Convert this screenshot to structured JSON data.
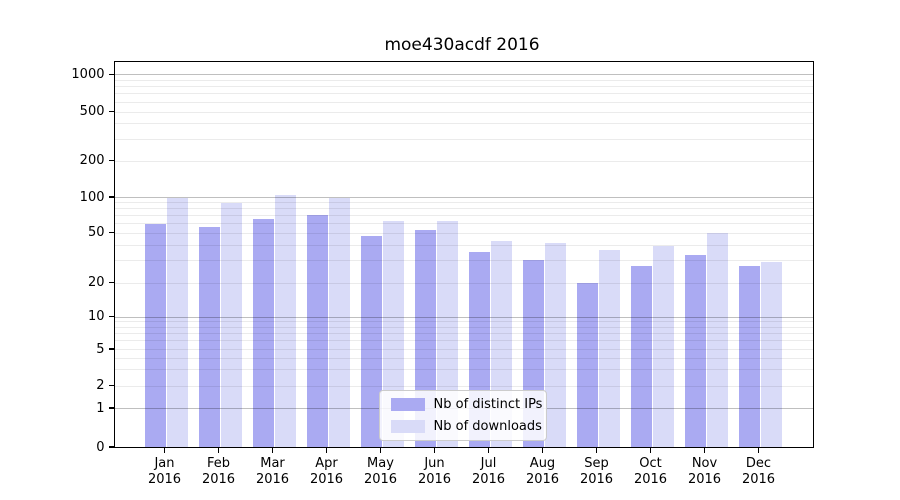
{
  "title": "moe430acdf 2016",
  "chart_data": {
    "type": "bar",
    "title": "moe430acdf 2016",
    "categories": [
      "Jan",
      "Feb",
      "Mar",
      "Apr",
      "May",
      "Jun",
      "Jul",
      "Aug",
      "Sep",
      "Oct",
      "Nov",
      "Dec"
    ],
    "year": "2016",
    "series": [
      {
        "name": "Nb of distinct IPs",
        "color": "#aaaaf2",
        "values": [
          59,
          56,
          65,
          70,
          47,
          53,
          35,
          30,
          20,
          27,
          33,
          27
        ]
      },
      {
        "name": "Nb of downloads",
        "color": "#d9dbf8",
        "values": [
          98,
          89,
          103,
          98,
          62,
          62,
          43,
          41,
          36,
          39,
          50,
          29
        ]
      }
    ],
    "y_ticks": [
      1000,
      500,
      200,
      100,
      50,
      20,
      10,
      5,
      2,
      1,
      0
    ],
    "ylim": [
      0,
      1200
    ],
    "yscale": "symlog",
    "grid": "both",
    "legend": {
      "position": "lower-center-inside",
      "labels": [
        "Nb of distinct IPs",
        "Nb of downloads"
      ]
    }
  },
  "colors": {
    "bar_distinct_ips": "#aaaaf2",
    "bar_downloads": "#d9dbf8",
    "major_gridline": "#c2c2c2",
    "minor_gridline": "#ebebeb",
    "axis": "#000000",
    "legend_border": "#cccccc"
  }
}
